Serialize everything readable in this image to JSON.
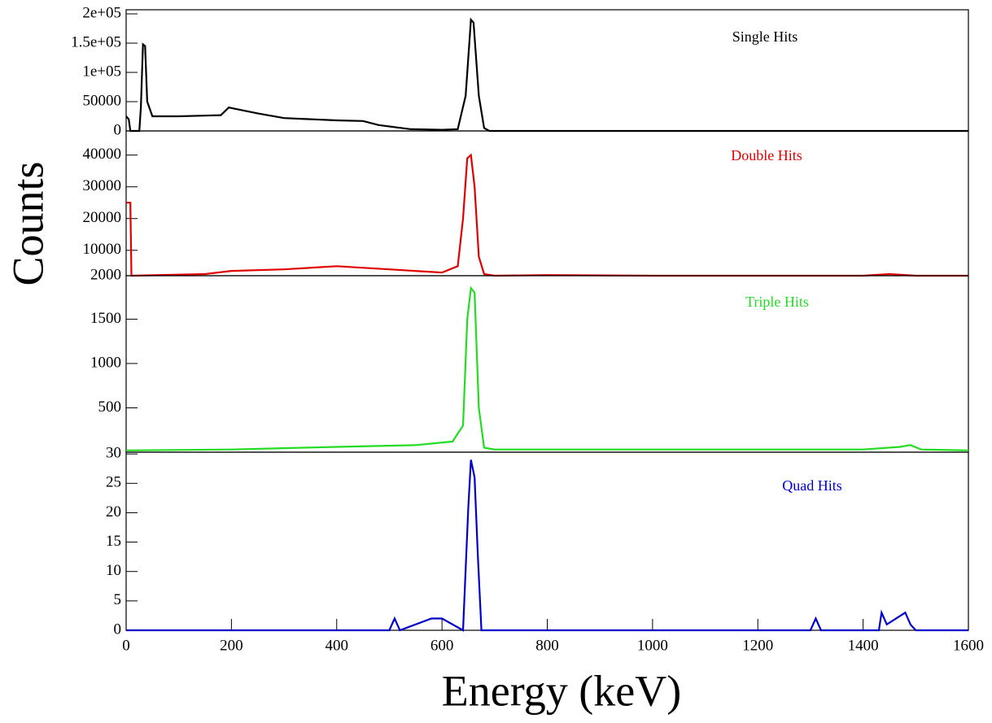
{
  "chart_data": [
    {
      "type": "line",
      "title": "Single Hits",
      "color": "#000000",
      "xlim": [
        0,
        1600
      ],
      "ylim": [
        0,
        207000
      ],
      "yticks": [
        0,
        50000,
        {
          "value": 100000,
          "label": "1e+05"
        },
        {
          "value": 150000,
          "label": "1.5e+05"
        },
        {
          "value": 200000,
          "label": "2e+05"
        }
      ],
      "x": [
        0,
        5,
        8,
        25,
        28,
        32,
        36,
        40,
        50,
        100,
        180,
        195,
        250,
        300,
        400,
        450,
        480,
        540,
        600,
        630,
        645,
        655,
        660,
        670,
        680,
        690,
        1600
      ],
      "values": [
        25000,
        20000,
        0,
        0,
        40000,
        148000,
        145000,
        50000,
        25000,
        25000,
        27000,
        40000,
        30000,
        22000,
        18000,
        17000,
        10000,
        3000,
        2000,
        3000,
        60000,
        190000,
        185000,
        60000,
        5000,
        0,
        0
      ]
    },
    {
      "type": "line",
      "title": "Double Hits",
      "color": "#e00000",
      "ylabel": "Counts",
      "xlim": [
        0,
        1600
      ],
      "ylim": [
        2000,
        47600
      ],
      "yticks": [
        2000,
        10000,
        20000,
        30000,
        40000
      ],
      "x": [
        0,
        8,
        10,
        150,
        200,
        300,
        400,
        500,
        600,
        630,
        640,
        648,
        655,
        662,
        670,
        680,
        700,
        800,
        1000,
        1400,
        1450,
        1500,
        1600
      ],
      "values": [
        25000,
        25000,
        2000,
        2500,
        3500,
        4000,
        5000,
        4000,
        3000,
        5000,
        20000,
        39000,
        40000,
        30000,
        8000,
        2500,
        2000,
        2200,
        2000,
        2000,
        2500,
        2000,
        2000
      ]
    },
    {
      "type": "line",
      "title": "Triple Hits",
      "color": "#22dd22",
      "xlim": [
        0,
        1600
      ],
      "ylim": [
        0,
        1990
      ],
      "yticks": [
        500,
        1000,
        1500
      ],
      "x": [
        0,
        200,
        400,
        550,
        620,
        640,
        648,
        655,
        662,
        670,
        680,
        700,
        900,
        1400,
        1470,
        1490,
        1510,
        1600
      ],
      "values": [
        20,
        30,
        60,
        80,
        120,
        300,
        1500,
        1850,
        1800,
        500,
        50,
        30,
        30,
        30,
        60,
        80,
        30,
        20
      ]
    },
    {
      "type": "line",
      "title": "Quad Hits",
      "color": "#0000cc",
      "xlabel": "Energy (keV)",
      "xlim": [
        0,
        1600
      ],
      "ylim": [
        0,
        30.3
      ],
      "yticks": [
        0,
        5,
        10,
        15,
        20,
        25,
        30
      ],
      "xticks": [
        0,
        200,
        400,
        600,
        800,
        1000,
        1200,
        1400,
        1600
      ],
      "x": [
        0,
        500,
        510,
        520,
        580,
        600,
        640,
        650,
        655,
        662,
        668,
        675,
        1300,
        1310,
        1320,
        1430,
        1435,
        1445,
        1480,
        1490,
        1500,
        1600
      ],
      "values": [
        0,
        0,
        2,
        0,
        2,
        2,
        0,
        21,
        29,
        26,
        13,
        0,
        0,
        2,
        0,
        0,
        3,
        1,
        3,
        1,
        0,
        0
      ]
    }
  ]
}
